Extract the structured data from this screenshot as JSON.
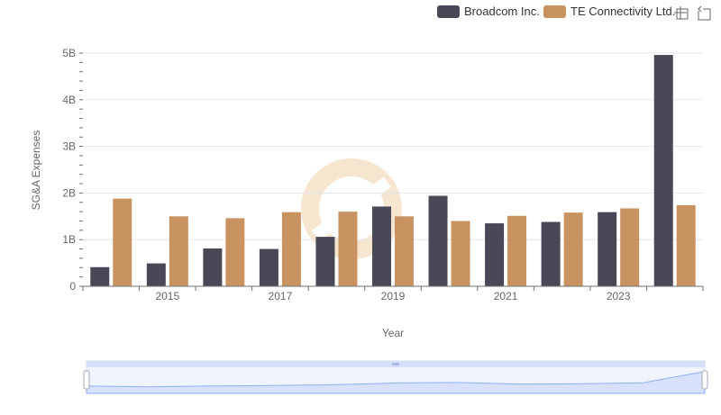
{
  "colors": {
    "broadcom": "#494856",
    "te": "#c89361",
    "grid": "#e0e6f1",
    "axis": "#6e7079",
    "zoom_fill": "#dbe3fb",
    "zoom_line": "#8fb0f7",
    "watermark": "#f6e6d0"
  },
  "toolbar": {
    "zoom_icon": "zoom-select-icon",
    "restore_icon": "zoom-restore-icon"
  },
  "chart_data": {
    "type": "bar",
    "xlabel": "Year",
    "ylabel": "SG&A Expenses",
    "x_tick_labels": [
      "2015",
      "2017",
      "2019",
      "2021",
      "2023"
    ],
    "y_tick_labels": [
      "0",
      "1B",
      "2B",
      "3B",
      "4B",
      "5B"
    ],
    "ylim": [
      0,
      5000000000
    ],
    "grid": true,
    "legend_position": "top-right",
    "categories": [
      2014,
      2015,
      2016,
      2017,
      2018,
      2019,
      2020,
      2021,
      2022,
      2023,
      2024
    ],
    "series": [
      {
        "name": "Broadcom Inc.",
        "values": [
          410000000,
          490000000,
          810000000,
          800000000,
          1060000000,
          1710000000,
          1940000000,
          1350000000,
          1380000000,
          1590000000,
          4960000000
        ]
      },
      {
        "name": "TE Connectivity Ltd.",
        "values": [
          1880000000,
          1500000000,
          1460000000,
          1590000000,
          1600000000,
          1500000000,
          1400000000,
          1510000000,
          1580000000,
          1670000000,
          1740000000
        ]
      }
    ]
  }
}
